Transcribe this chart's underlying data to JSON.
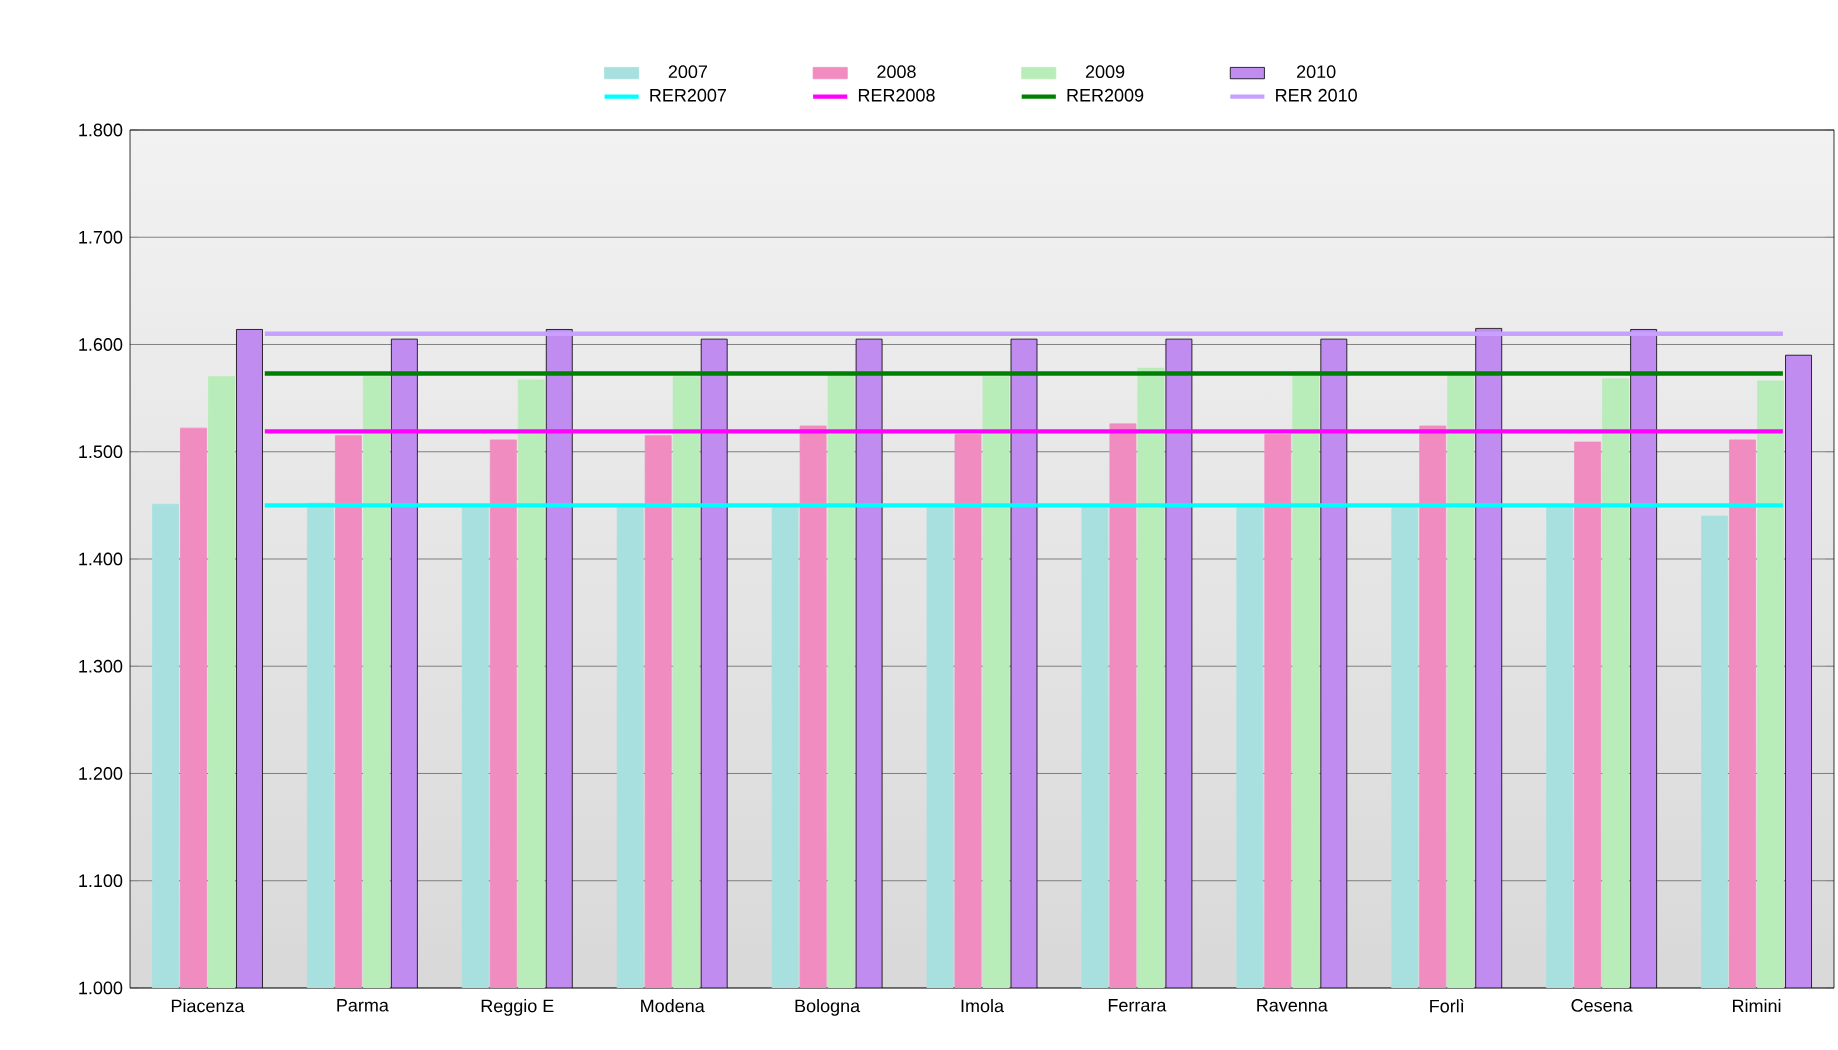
{
  "chart_data": {
    "type": "bar",
    "categories": [
      "Piacenza",
      "Parma",
      "Reggio E",
      "Modena",
      "Bologna",
      "Imola",
      "Ferrara",
      "Ravenna",
      "Forlì",
      "Cesena",
      "Rimini"
    ],
    "series": [
      {
        "name": "2007",
        "color": "#a8e0e0",
        "values": [
          1.451,
          1.452,
          1.45,
          1.45,
          1.451,
          1.45,
          1.451,
          1.451,
          1.451,
          1.45,
          1.44
        ]
      },
      {
        "name": "2008",
        "color": "#f08cc0",
        "values": [
          1.522,
          1.515,
          1.511,
          1.515,
          1.524,
          1.516,
          1.526,
          1.516,
          1.524,
          1.509,
          1.511
        ]
      },
      {
        "name": "2009",
        "color": "#b8ecb8",
        "values": [
          1.57,
          1.57,
          1.567,
          1.57,
          1.572,
          1.57,
          1.578,
          1.571,
          1.571,
          1.568,
          1.566
        ]
      },
      {
        "name": "2010",
        "color": "#c08cf0",
        "values": [
          1.614,
          1.605,
          1.614,
          1.605,
          1.605,
          1.605,
          1.605,
          1.605,
          1.615,
          1.614,
          1.59
        ]
      }
    ],
    "ref_lines": [
      {
        "axis": "y",
        "value": 1.45,
        "label": "RER2007",
        "color": "#00ffff"
      },
      {
        "axis": "y",
        "value": 1.519,
        "label": "RER2008",
        "color": "#ff00ff"
      },
      {
        "axis": "y",
        "value": 1.573,
        "label": "RER2009",
        "color": "#008000"
      },
      {
        "axis": "y",
        "value": 1.61,
        "label": "RER 2010",
        "color": "#c8a0ff"
      }
    ],
    "ylim": [
      1.0,
      1.8
    ],
    "yticks": [
      {
        "value": 1.0,
        "label": "1.000"
      },
      {
        "value": 1.1,
        "label": "1.100"
      },
      {
        "value": 1.2,
        "label": "1.200"
      },
      {
        "value": 1.3,
        "label": "1.300"
      },
      {
        "value": 1.4,
        "label": "1.400"
      },
      {
        "value": 1.5,
        "label": "1.500"
      },
      {
        "value": 1.6,
        "label": "1.600"
      },
      {
        "value": 1.7,
        "label": "1.700"
      },
      {
        "value": 1.8,
        "label": "1.800"
      }
    ],
    "grid": "y",
    "legend": "top"
  }
}
